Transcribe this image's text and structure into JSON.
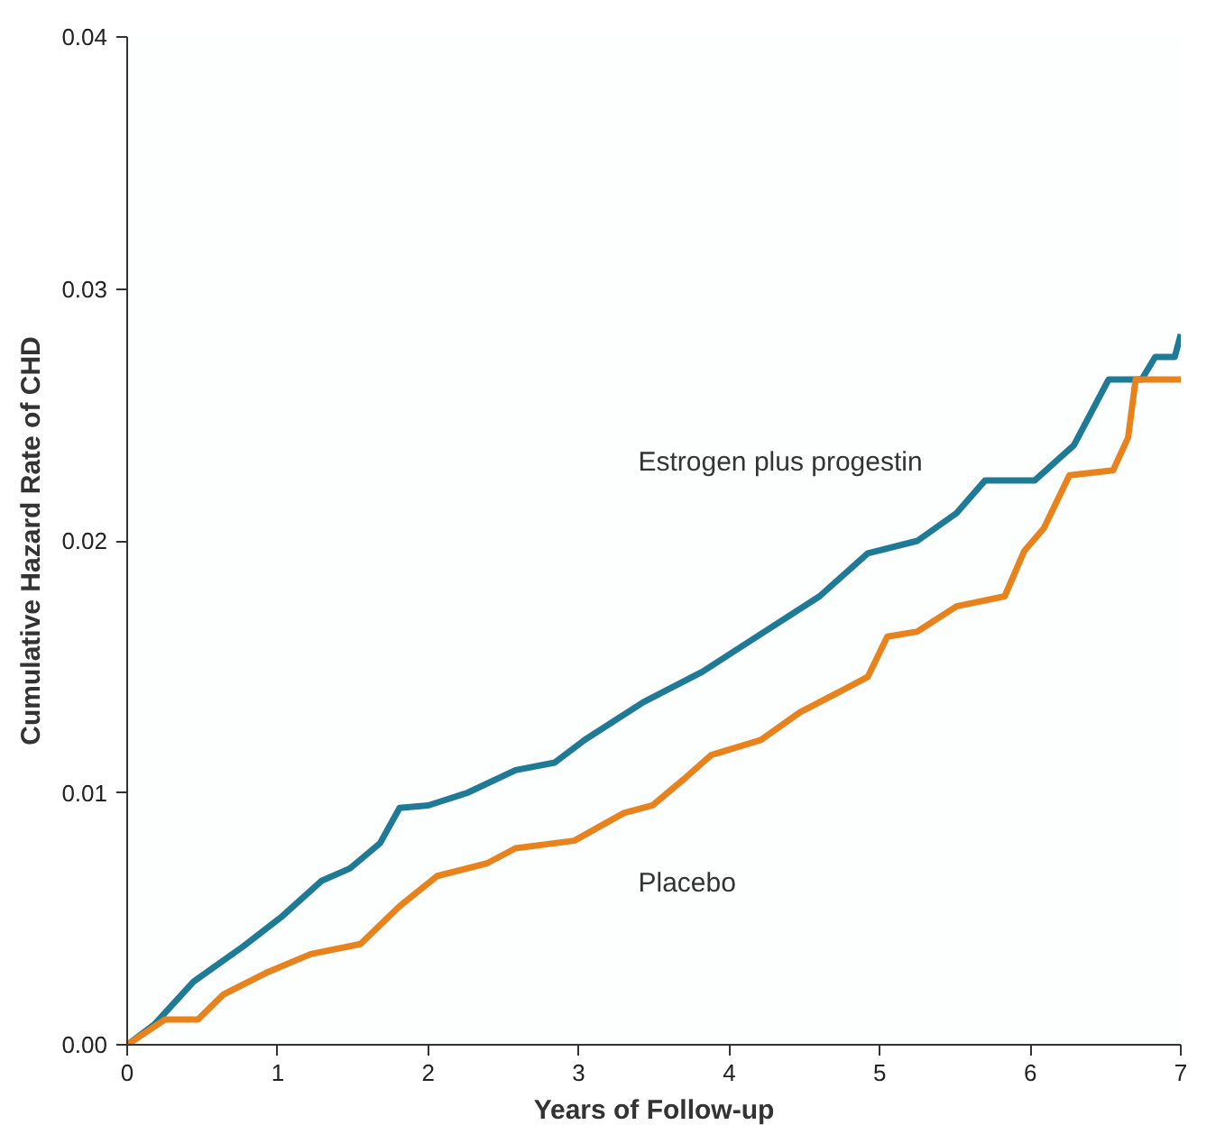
{
  "chart_data": {
    "type": "line",
    "xlabel": "Years of Follow-up",
    "ylabel": "Cumulative Hazard Rate of CHD",
    "xlim": [
      0,
      7
    ],
    "ylim": [
      0,
      0.04
    ],
    "xticks": [
      0,
      1,
      2,
      3,
      4,
      5,
      6,
      7
    ],
    "yticks": [
      {
        "value": 0,
        "label": "0.00"
      },
      {
        "value": 0.01,
        "label": "0.01"
      },
      {
        "value": 0.02,
        "label": "0.02"
      },
      {
        "value": 0.03,
        "label": "0.03"
      },
      {
        "value": 0.04,
        "label": "0.04"
      }
    ],
    "grid": false,
    "legend": false,
    "series": [
      {
        "name": "Estrogen plus progestin",
        "color": "#1f7a95",
        "x": [
          0,
          0.18,
          0.44,
          0.77,
          1.03,
          1.29,
          1.48,
          1.68,
          1.81,
          2.0,
          2.26,
          2.58,
          2.84,
          3.04,
          3.43,
          3.82,
          4.21,
          4.6,
          4.92,
          5.25,
          5.51,
          5.7,
          6.03,
          6.29,
          6.52,
          6.74,
          6.83,
          6.96,
          7.0
        ],
        "values": [
          0,
          0.0008,
          0.0025,
          0.0039,
          0.0051,
          0.0065,
          0.007,
          0.008,
          0.0094,
          0.0095,
          0.01,
          0.0109,
          0.0112,
          0.0121,
          0.0136,
          0.0148,
          0.0163,
          0.0178,
          0.0195,
          0.02,
          0.0211,
          0.0224,
          0.0224,
          0.0238,
          0.0264,
          0.0264,
          0.0273,
          0.0273,
          0.0282
        ]
      },
      {
        "name": "Placebo",
        "color": "#e8821c",
        "x": [
          0,
          0.25,
          0.47,
          0.64,
          0.94,
          1.22,
          1.55,
          1.81,
          2.06,
          2.39,
          2.58,
          2.97,
          3.3,
          3.49,
          3.69,
          3.88,
          4.21,
          4.47,
          4.73,
          4.92,
          5.05,
          5.25,
          5.51,
          5.83,
          5.96,
          6.09,
          6.26,
          6.55,
          6.65,
          6.7,
          7.0
        ],
        "values": [
          0,
          0.001,
          0.001,
          0.002,
          0.0029,
          0.0036,
          0.004,
          0.0055,
          0.0067,
          0.0072,
          0.0078,
          0.0081,
          0.0092,
          0.0095,
          0.0105,
          0.0115,
          0.0121,
          0.0132,
          0.014,
          0.0146,
          0.0162,
          0.0164,
          0.0174,
          0.0178,
          0.0196,
          0.0205,
          0.0226,
          0.0228,
          0.0241,
          0.0264,
          0.0264
        ]
      }
    ]
  }
}
